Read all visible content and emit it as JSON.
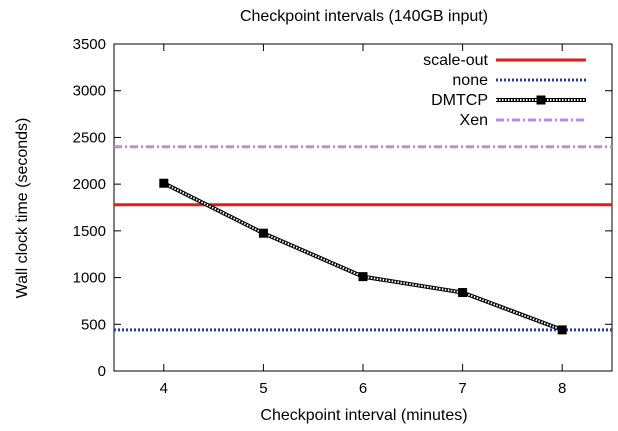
{
  "chart_data": {
    "type": "line",
    "title": "Checkpoint intervals (140GB input)",
    "xlabel": "Checkpoint interval (minutes)",
    "ylabel": "Wall clock time (seconds)",
    "xlim": [
      3.5,
      8.5
    ],
    "ylim": [
      0,
      3500
    ],
    "x_ticks": [
      4,
      5,
      6,
      7,
      8
    ],
    "y_ticks": [
      0,
      500,
      1000,
      1500,
      2000,
      2500,
      3000,
      3500
    ],
    "legend_position": "top-right",
    "grid": false,
    "series": [
      {
        "name": "scale-out",
        "kind": "hline",
        "value": 1780,
        "color": "#e41a1c",
        "style": "solid"
      },
      {
        "name": "none",
        "kind": "hline",
        "value": 440,
        "color": "#1f3bb3",
        "style": "dotted"
      },
      {
        "name": "DMTCP",
        "kind": "line",
        "x": [
          4,
          5,
          6,
          7,
          8
        ],
        "y": [
          2010,
          1475,
          1010,
          840,
          440
        ],
        "color": "#000000",
        "style": "dotted-marker"
      },
      {
        "name": "Xen",
        "kind": "hline",
        "value": 2400,
        "color": "#bb88ee",
        "style": "dashdot"
      }
    ]
  }
}
